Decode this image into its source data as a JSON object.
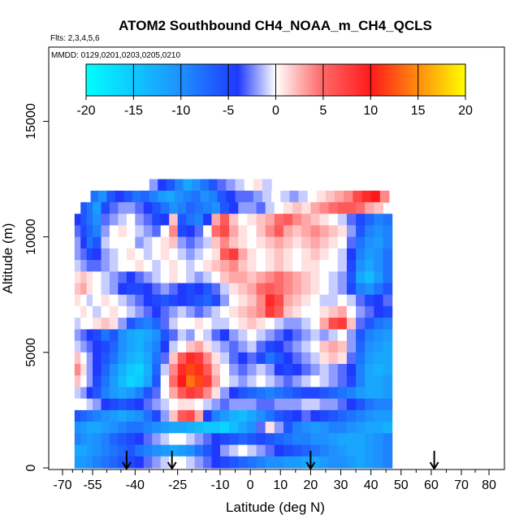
{
  "chart_data": {
    "type": "heatmap",
    "title": "ATOM2 Southbound CH4_NOAA_m_CH4_QCLS",
    "subtitle_flights": "Flts: 2,3,4,5,6",
    "subtitle_dates": "MMDD: 0129,0201,0203,0205,0210",
    "xlabel": "Latitude (deg N)",
    "ylabel": "Altitude (m)",
    "xlim": [
      -70,
      80
    ],
    "ylim": [
      0,
      17500
    ],
    "x_tick_labels": [
      "-70",
      "-55",
      "-40",
      "-25",
      "-10",
      "0",
      "10",
      "20",
      "30",
      "40",
      "50",
      "60",
      "70",
      "80"
    ],
    "x_tick_values": [
      -70,
      -55,
      -40,
      -25,
      -10,
      0,
      10,
      20,
      30,
      40,
      50,
      60,
      70,
      80
    ],
    "y_ticks": [
      0,
      5000,
      10000,
      15000
    ],
    "y_tick_labels": [
      "0",
      "5000",
      "10000",
      "15000"
    ],
    "colorbar": {
      "range": [
        -20,
        20
      ],
      "tick_labels": [
        "-20",
        "-15",
        "-10",
        "-5",
        "0",
        "5",
        "10",
        "15",
        "20"
      ],
      "tick_values": [
        -20,
        -15,
        -10,
        -5,
        0,
        5,
        10,
        15,
        20
      ]
    },
    "arrow_latitudes": [
      -43,
      -27,
      20,
      61
    ],
    "cell_size": {
      "lat_deg": 3,
      "alt_m": 500
    },
    "rows": [
      {
        "alt": 12000,
        "lat_start": -35,
        "values": [
          -2,
          -4,
          -6,
          -9,
          -12,
          -10,
          -8,
          -6,
          -3,
          -2,
          -1,
          0,
          1,
          -1
        ]
      },
      {
        "alt": 11500,
        "lat_start": -56,
        "values": [
          -8,
          -10,
          -6,
          -4,
          -6,
          -8,
          -7,
          -9,
          -11,
          -12,
          -10,
          -9,
          -8,
          -10,
          -9,
          -6,
          -4,
          -3,
          -3,
          -2,
          -1,
          0,
          -1,
          -2,
          -1,
          0,
          1,
          2,
          3,
          4,
          7,
          9,
          10,
          4
        ]
      },
      {
        "alt": 11000,
        "lat_start": -61,
        "values": [
          -6,
          -8,
          -11,
          -5,
          -3,
          -2,
          -2,
          -3,
          -4,
          -6,
          -8,
          -10,
          -9,
          -7,
          -8,
          -9,
          -10,
          -6,
          -4,
          -2,
          -2,
          -3,
          -1,
          0,
          1,
          2,
          1,
          3,
          4,
          5,
          6,
          6,
          5,
          3,
          2
        ]
      },
      {
        "alt": 10500,
        "lat_start": -64,
        "values": [
          -4,
          -6,
          -8,
          -10,
          -3,
          -2,
          -1,
          0,
          -2,
          -3,
          -5,
          -4,
          2,
          -6,
          -8,
          -9,
          -4,
          3,
          6,
          2,
          0,
          1,
          2,
          3,
          5,
          6,
          4,
          3,
          2,
          1,
          0,
          -1,
          -3,
          -5,
          -7,
          -9,
          -8
        ]
      },
      {
        "alt": 10000,
        "lat_start": -64,
        "values": [
          -3,
          -5,
          -7,
          -9,
          -2,
          0,
          1,
          0,
          -1,
          -2,
          -3,
          0,
          4,
          -5,
          -4,
          -3,
          0,
          5,
          7,
          3,
          1,
          0,
          2,
          4,
          6,
          3,
          2,
          3,
          4,
          3,
          2,
          1,
          -2,
          -6,
          -9,
          -10,
          -9
        ]
      },
      {
        "alt": 9500,
        "lat_start": -64,
        "values": [
          -2,
          -4,
          -8,
          -6,
          -1,
          0,
          0,
          0,
          -2,
          -1,
          0,
          1,
          2,
          -2,
          -3,
          -2,
          -1,
          2,
          4,
          2,
          1,
          0,
          1,
          2,
          3,
          2,
          1,
          2,
          3,
          2,
          1,
          0,
          -3,
          -8,
          -10,
          -11,
          -9
        ]
      },
      {
        "alt": 9000,
        "lat_start": -64,
        "values": [
          -2,
          -3,
          -5,
          -4,
          -2,
          -1,
          0,
          1,
          0,
          -1,
          0,
          1,
          0,
          -1,
          -2,
          -1,
          0,
          1,
          6,
          8,
          3,
          1,
          0,
          1,
          2,
          1,
          0,
          1,
          2,
          1,
          0,
          -1,
          -4,
          -9,
          -11,
          -10,
          -8
        ]
      },
      {
        "alt": 8500,
        "lat_start": -64,
        "values": [
          -1,
          -2,
          -3,
          -3,
          -2,
          -1,
          0,
          0,
          1,
          0,
          -1,
          0,
          1,
          0,
          -1,
          0,
          1,
          2,
          3,
          4,
          2,
          1,
          0,
          1,
          2,
          1,
          0,
          1,
          1,
          0,
          0,
          -1,
          -5,
          -10,
          -12,
          -10,
          -8
        ]
      },
      {
        "alt": 8000,
        "lat_start": -64,
        "values": [
          1,
          2,
          1,
          0,
          -1,
          -2,
          -3,
          -4,
          -3,
          -2,
          -1,
          0,
          1,
          0,
          -1,
          -2,
          -1,
          0,
          2,
          3,
          3,
          2,
          3,
          4,
          5,
          4,
          3,
          2,
          1,
          0,
          -1,
          -2,
          -6,
          -12,
          -14,
          -11,
          -8
        ]
      },
      {
        "alt": 7500,
        "lat_start": -64,
        "values": [
          2,
          3,
          1,
          0,
          -1,
          -2,
          -4,
          -5,
          -5,
          -4,
          -3,
          -2,
          -3,
          -4,
          -5,
          -4,
          -6,
          -3,
          -1,
          1,
          2,
          3,
          5,
          6,
          5,
          4,
          3,
          2,
          1,
          0,
          -1,
          -2,
          -5,
          -9,
          -10,
          -8,
          -6
        ]
      },
      {
        "alt": 7000,
        "lat_start": -64,
        "values": [
          1,
          0,
          -1,
          0,
          1,
          0,
          -1,
          -2,
          -3,
          -4,
          -5,
          -6,
          -5,
          -4,
          -5,
          -6,
          -7,
          -5,
          -2,
          0,
          1,
          2,
          4,
          9,
          7,
          3,
          2,
          1,
          0,
          -1,
          -1,
          0,
          -1,
          -3,
          -5,
          -4,
          -3
        ]
      },
      {
        "alt": 6500,
        "lat_start": -64,
        "values": [
          0,
          1,
          0,
          -1,
          0,
          1,
          0,
          -1,
          -2,
          -3,
          -4,
          -3,
          -2,
          -1,
          -2,
          -3,
          -2,
          -1,
          0,
          1,
          2,
          3,
          4,
          8,
          6,
          2,
          1,
          0,
          0,
          1,
          2,
          3,
          0,
          -2,
          -3,
          -4,
          -5
        ]
      },
      {
        "alt": 6000,
        "lat_start": -64,
        "values": [
          -1,
          0,
          0,
          1,
          2,
          1,
          -2,
          -6,
          -8,
          -9,
          -7,
          -3,
          -1,
          0,
          0,
          1,
          0,
          -1,
          -1,
          0,
          1,
          2,
          1,
          0,
          -1,
          -2,
          -2,
          -1,
          0,
          3,
          7,
          8,
          2,
          -3,
          -6,
          -8,
          -9
        ]
      },
      {
        "alt": 5500,
        "lat_start": -64,
        "values": [
          -2,
          -3,
          -4,
          -5,
          -8,
          -6,
          -10,
          -12,
          -13,
          -12,
          -10,
          -6,
          -3,
          -1,
          -2,
          0,
          -1,
          -3,
          -4,
          -2,
          -1,
          0,
          -1,
          -2,
          -3,
          -4,
          -3,
          -2,
          -1,
          -2,
          -1,
          0,
          -2,
          -6,
          -9,
          -10,
          -11
        ]
      },
      {
        "alt": 5000,
        "lat_start": -64,
        "values": [
          -1,
          -2,
          -3,
          -4,
          -5,
          -7,
          -10,
          -12,
          -13,
          -11,
          -9,
          -4,
          -1,
          0,
          2,
          3,
          1,
          -1,
          -2,
          -3,
          -2,
          -1,
          -3,
          -5,
          -4,
          -3,
          -2,
          -1,
          0,
          2,
          3,
          2,
          -2,
          -7,
          -10,
          -11,
          -12
        ]
      },
      {
        "alt": 4500,
        "lat_start": -64,
        "values": [
          2,
          0,
          -2,
          -4,
          -6,
          -8,
          -11,
          -13,
          -14,
          -12,
          -8,
          -3,
          2,
          6,
          9,
          8,
          4,
          1,
          -1,
          -3,
          -4,
          -3,
          -5,
          -8,
          -6,
          -4,
          -3,
          -2,
          -1,
          1,
          2,
          1,
          -3,
          -8,
          -11,
          -12,
          -12
        ]
      },
      {
        "alt": 4000,
        "lat_start": -64,
        "values": [
          4,
          1,
          -2,
          -4,
          -7,
          -10,
          -13,
          -15,
          -16,
          -13,
          -7,
          -1,
          4,
          9,
          12,
          11,
          6,
          2,
          0,
          -2,
          -3,
          -2,
          -1,
          -2,
          -4,
          -5,
          -4,
          -3,
          -2,
          -1,
          -2,
          -3,
          -4,
          -9,
          -12,
          -13,
          -12
        ]
      },
      {
        "alt": 3500,
        "lat_start": -64,
        "values": [
          2,
          0,
          -2,
          -5,
          -8,
          -11,
          -14,
          -16,
          -15,
          -12,
          -6,
          0,
          5,
          10,
          14,
          12,
          8,
          3,
          0,
          -1,
          -2,
          -1,
          0,
          -1,
          -2,
          -3,
          -2,
          -1,
          0,
          -1,
          -2,
          -3,
          -5,
          -9,
          -12,
          -12,
          -11
        ]
      },
      {
        "alt": 3000,
        "lat_start": -64,
        "values": [
          -1,
          -2,
          -4,
          -6,
          -9,
          -11,
          -12,
          -11,
          -9,
          -6,
          -3,
          0,
          3,
          6,
          8,
          7,
          4,
          1,
          -2,
          -4,
          -6,
          -7,
          -8,
          -9,
          -8,
          -7,
          -6,
          -5,
          -5,
          -6,
          -7,
          -8,
          -9,
          -11,
          -12,
          -12,
          -11
        ]
      },
      {
        "alt": 2500,
        "lat_start": -64,
        "values": [
          0,
          0,
          -1,
          -2,
          -4,
          -5,
          -6,
          -5,
          -4,
          -3,
          -2,
          -1,
          0,
          1,
          1,
          0,
          -1,
          -2,
          -3,
          -2,
          -2,
          -2,
          -3,
          -3,
          -2,
          -2,
          -2,
          -1,
          -1,
          -2,
          -2,
          -3,
          -4,
          -6,
          -8,
          -9,
          -9
        ]
      },
      {
        "alt": 2000,
        "lat_start": -64,
        "values": [
          -6,
          -7,
          -8,
          -9,
          -10,
          -11,
          -12,
          -11,
          -10,
          -8,
          -5,
          -2,
          2,
          6,
          7,
          3,
          -4,
          -9,
          -11,
          -13,
          -14,
          -12,
          -10,
          -8,
          -6,
          -5,
          -4,
          -3,
          -4,
          -5,
          -6,
          -7,
          -8,
          -9,
          -10,
          -11,
          -11
        ]
      },
      {
        "alt": 1500,
        "lat_start": -64,
        "values": [
          -10,
          -11,
          -12,
          -12,
          -11,
          -10,
          -9,
          -8,
          -8,
          -9,
          -10,
          -11,
          -12,
          -12,
          -13,
          -14,
          -15,
          -15,
          -16,
          -14,
          -12,
          -10,
          -3,
          1,
          -2,
          -6,
          -9,
          -10,
          -11,
          -10,
          -9,
          -9,
          -10,
          -11,
          -12,
          -12,
          -13
        ]
      },
      {
        "alt": 1000,
        "lat_start": -64,
        "values": [
          -9,
          -10,
          -11,
          -10,
          -9,
          -7,
          -6,
          -5,
          -4,
          -3,
          -2,
          -1,
          0,
          0,
          -1,
          -2,
          -3,
          -4,
          -5,
          -6,
          -7,
          -6,
          -5,
          -6,
          -7,
          -8,
          -9,
          -9,
          -10,
          -10,
          -11,
          -12,
          -12,
          -12,
          -11,
          -10,
          -9
        ]
      },
      {
        "alt": 500,
        "lat_start": -64,
        "values": [
          -12,
          -12,
          -11,
          -10,
          -9,
          -8,
          -7,
          -6,
          -8,
          -9,
          -10,
          -11,
          -12,
          -11,
          -10,
          -8,
          -6,
          -4,
          -2,
          -1,
          0,
          -1,
          -2,
          -3,
          -4,
          -5,
          -6,
          -7,
          -8,
          -9,
          -10,
          -11,
          -12,
          -12,
          -11,
          -10,
          -9
        ]
      },
      {
        "alt": 0,
        "lat_start": -64,
        "values": [
          -11,
          -11,
          -10,
          -9,
          -8,
          -7,
          -6,
          -5,
          -4,
          -3,
          -2,
          -1,
          0,
          0,
          -1,
          -2,
          -3,
          -4,
          -5,
          -6,
          -7,
          -8,
          -9,
          -10,
          -10,
          -11,
          -11,
          -12,
          -12,
          -11,
          -10,
          -10,
          -11,
          -12,
          -11,
          -10,
          -9
        ]
      }
    ]
  }
}
